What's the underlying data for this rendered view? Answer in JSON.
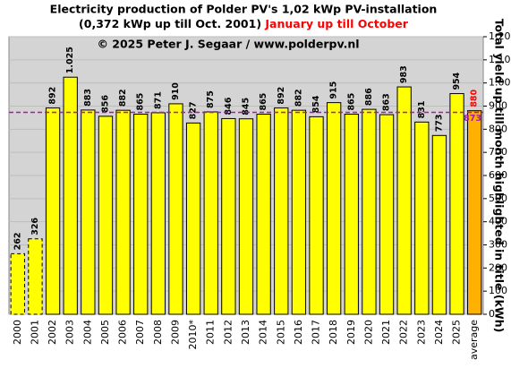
{
  "chart_data": {
    "type": "bar",
    "title": "Electricity production  of Polder PV's 1,02 kWp PV-installation",
    "subtitle": "(0,372 kWp up till Oct. 2001)",
    "subtitle_highlight": "January up till October",
    "subtitle_highlight_color": "#ff0000",
    "annotation": "© 2025 Peter J. Segaar / www.polderpv.nl",
    "y_label": "Total yield up till month highlighted in title (kWh)",
    "categories": [
      "2000",
      "2001",
      "2002",
      "2003",
      "2004",
      "2005",
      "2006",
      "2007",
      "2008",
      "2009",
      "2010*",
      "2011",
      "2012",
      "2013",
      "2014",
      "2015",
      "2016",
      "2017",
      "2018",
      "2019",
      "2020",
      "2021",
      "2022",
      "2023",
      "2024",
      "2025",
      "average"
    ],
    "values": [
      262,
      326,
      892,
      1025,
      883,
      856,
      882,
      865,
      871,
      910,
      827,
      875,
      846,
      845,
      865,
      892,
      882,
      854,
      915,
      865,
      886,
      863,
      983,
      831,
      773,
      954,
      880
    ],
    "value_labels": [
      "262",
      "326",
      "892",
      "1.025",
      "883",
      "856",
      "882",
      "865",
      "871",
      "910",
      "827",
      "875",
      "846",
      "845",
      "865",
      "892",
      "882",
      "854",
      "915",
      "865",
      "886",
      "863",
      "983",
      "831",
      "773",
      "954",
      "880"
    ],
    "bar_colors": [
      "#ffff00",
      "#ffff00",
      "#ffff00",
      "#ffff00",
      "#ffff00",
      "#ffff00",
      "#ffff00",
      "#ffff00",
      "#ffff00",
      "#ffff00",
      "#ffff00",
      "#ffff00",
      "#ffff00",
      "#ffff00",
      "#ffff00",
      "#ffff00",
      "#ffff00",
      "#ffff00",
      "#ffff00",
      "#ffff00",
      "#ffff00",
      "#ffff00",
      "#ffff00",
      "#ffff00",
      "#ffff00",
      "#ffff00",
      "#ffb000"
    ],
    "bar_outline": [
      "dashed",
      "dashed",
      "solid",
      "solid",
      "solid",
      "solid",
      "solid",
      "solid",
      "solid",
      "solid",
      "solid",
      "solid",
      "solid",
      "solid",
      "solid",
      "solid",
      "solid",
      "solid",
      "solid",
      "solid",
      "solid",
      "solid",
      "solid",
      "solid",
      "solid",
      "solid",
      "solid"
    ],
    "value_label_colors": [
      "#000000",
      "#000000",
      "#000000",
      "#000000",
      "#000000",
      "#000000",
      "#000000",
      "#000000",
      "#000000",
      "#000000",
      "#000000",
      "#000000",
      "#000000",
      "#000000",
      "#000000",
      "#000000",
      "#000000",
      "#000000",
      "#000000",
      "#000000",
      "#000000",
      "#000000",
      "#000000",
      "#000000",
      "#000000",
      "#000000",
      "#ff0000"
    ],
    "reference_line": {
      "value": 873,
      "color": "#a020a0"
    },
    "ylim": [
      0,
      1200
    ],
    "yticks": [
      0,
      100,
      200,
      300,
      400,
      500,
      600,
      700,
      800,
      900,
      {
        "value": 1000,
        "label": "1.000"
      },
      {
        "value": 1100,
        "label": "1.100"
      },
      {
        "value": 1200,
        "label": "1.200"
      }
    ],
    "y_axis_side": "right",
    "grid": true
  }
}
